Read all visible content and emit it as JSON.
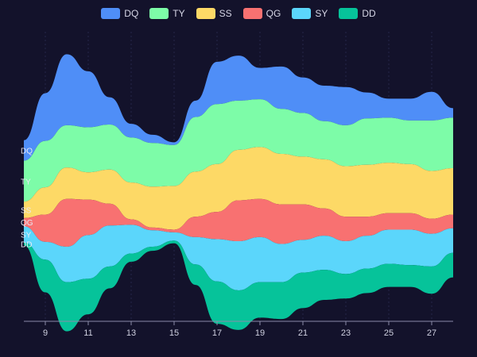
{
  "chart_data": {
    "type": "area",
    "subtype": "streamgraph",
    "x": [
      8,
      9,
      10,
      11,
      12,
      13,
      14,
      15,
      16,
      17,
      18,
      19,
      20,
      21,
      22,
      23,
      24,
      25,
      26,
      27,
      28
    ],
    "xticks": [
      9,
      11,
      13,
      15,
      17,
      19,
      21,
      23,
      25,
      27
    ],
    "xlim": [
      8,
      28
    ],
    "legend_position": "top-center",
    "grid": true,
    "series": [
      {
        "name": "DQ",
        "color": "#4f8ef7",
        "values": [
          1.5,
          3.5,
          5.2,
          4.1,
          2.0,
          1.0,
          0.6,
          0.2,
          1.2,
          3.1,
          3.3,
          2.3,
          3.1,
          2.6,
          2.6,
          2.8,
          1.9,
          1.4,
          1.6,
          2.1,
          0.7
        ]
      },
      {
        "name": "TY",
        "color": "#7dfca8",
        "values": [
          3.0,
          3.4,
          3.1,
          3.3,
          3.3,
          3.3,
          3.2,
          3.0,
          4.0,
          4.4,
          3.6,
          3.5,
          3.3,
          3.2,
          2.8,
          3.0,
          3.4,
          3.3,
          3.2,
          3.7,
          3.7
        ]
      },
      {
        "name": "SS",
        "color": "#fdd966",
        "values": [
          1.2,
          2.0,
          2.3,
          2.0,
          2.5,
          2.7,
          3.0,
          3.2,
          3.3,
          3.5,
          3.7,
          3.8,
          3.7,
          3.5,
          3.6,
          3.7,
          3.8,
          3.7,
          3.6,
          3.5,
          3.4
        ]
      },
      {
        "name": "QG",
        "color": "#f87171",
        "values": [
          0.6,
          2.0,
          3.5,
          2.6,
          1.6,
          0.4,
          0.2,
          0.2,
          1.5,
          2.0,
          3.0,
          2.8,
          2.9,
          2.6,
          2.0,
          1.8,
          1.4,
          1.2,
          1.2,
          1.1,
          1.0
        ]
      },
      {
        "name": "SY",
        "color": "#5bd6fb",
        "values": [
          1.2,
          1.3,
          2.6,
          3.2,
          3.0,
          2.1,
          1.2,
          0.6,
          2.0,
          3.1,
          3.6,
          3.3,
          2.8,
          2.4,
          2.5,
          2.4,
          2.4,
          2.5,
          2.6,
          2.4,
          1.8
        ]
      },
      {
        "name": "DD",
        "color": "#06c39a",
        "values": [
          0.2,
          2.4,
          3.6,
          2.6,
          1.6,
          0.6,
          0.3,
          0.2,
          1.5,
          3.1,
          2.9,
          2.6,
          2.7,
          2.6,
          2.2,
          1.8,
          1.8,
          1.7,
          1.6,
          2.0,
          1.8
        ]
      }
    ]
  }
}
